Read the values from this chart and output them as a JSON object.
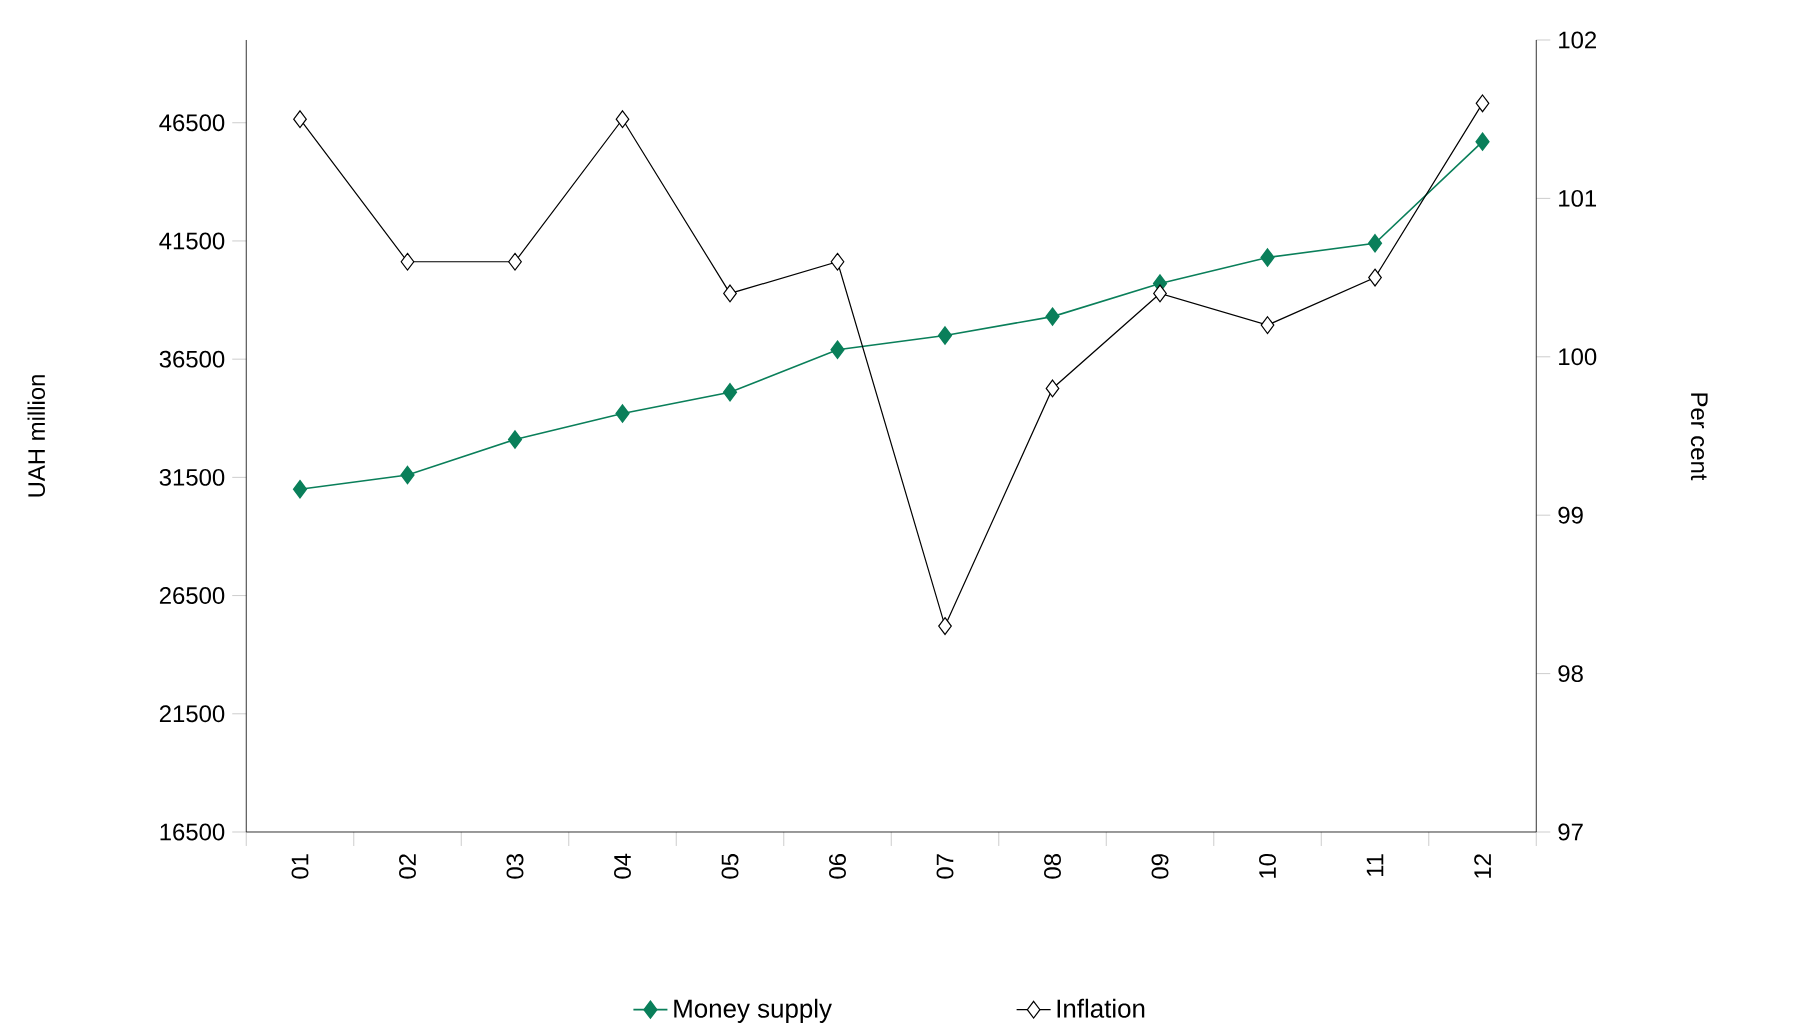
{
  "chart_data": {
    "type": "line",
    "categories": [
      "01",
      "02",
      "03",
      "04",
      "05",
      "06",
      "07",
      "08",
      "09",
      "10",
      "11",
      "12"
    ],
    "ylabel": "UAH million",
    "y2label": "Per cent",
    "ylim": [
      16500,
      50000
    ],
    "yticks": [
      16500,
      21500,
      26500,
      31500,
      36500,
      41500,
      46500
    ],
    "y2lim": [
      97,
      102
    ],
    "y2ticks": [
      97,
      98,
      99,
      100,
      101,
      102
    ],
    "marker": "diamond",
    "legend": "bottom",
    "grid": false,
    "series": [
      {
        "name": "Money supply",
        "color": "#0a7f5a",
        "values": [
          31000,
          31600,
          33100,
          34200,
          35100,
          36900,
          37500,
          38300,
          39700,
          40800,
          41400,
          45700
        ]
      },
      {
        "name": "Inflation",
        "color": "#000000",
        "axis": "y2",
        "values": [
          101.5,
          100.6,
          100.6,
          101.5,
          100.4,
          100.6,
          98.3,
          99.8,
          100.4,
          100.2,
          100.5,
          101.6
        ]
      }
    ]
  }
}
